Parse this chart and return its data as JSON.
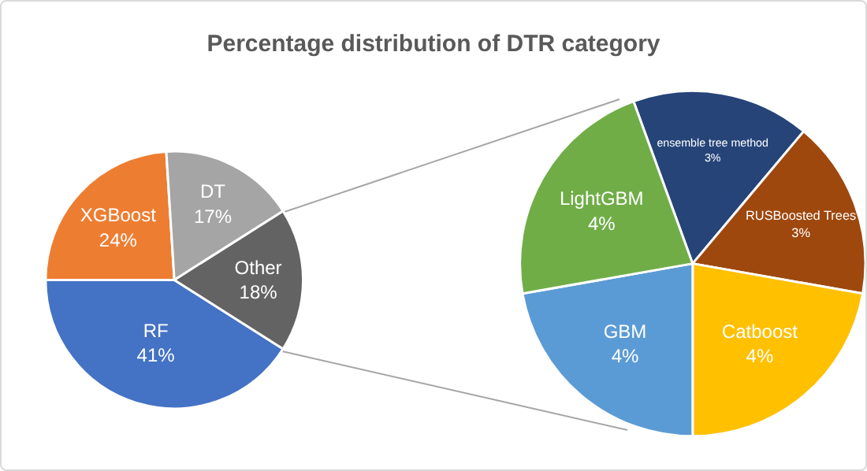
{
  "chart_data": [
    {
      "type": "pie",
      "title": "Percentage distribution of DTR category",
      "categories": [
        "RF",
        "XGBoost",
        "DT",
        "Other"
      ],
      "values": [
        41,
        24,
        17,
        18
      ],
      "colors": [
        "#4472c4",
        "#ed7d31",
        "#a5a5a5",
        "#636363"
      ],
      "value_labels": [
        "41%",
        "24%",
        "17%",
        "18%"
      ]
    },
    {
      "type": "pie",
      "categories": [
        "ensemble tree method",
        "RUSBoosted Trees",
        "Catboost",
        "GBM",
        "LightGBM"
      ],
      "values": [
        3,
        3,
        4,
        4,
        4
      ],
      "colors": [
        "#264478",
        "#9e480e",
        "#ffc000",
        "#5b9bd5",
        "#70ad47"
      ],
      "value_labels": [
        "3%",
        "3%",
        "4%",
        "4%",
        "4%"
      ]
    }
  ]
}
